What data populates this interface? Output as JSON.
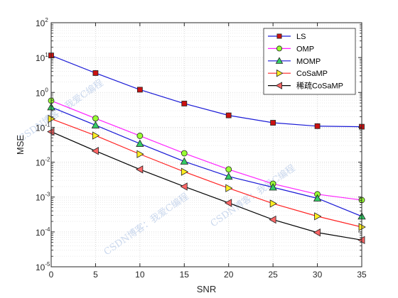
{
  "chart_data": {
    "type": "line",
    "xlabel": "SNR",
    "ylabel": "MSE",
    "yscale": "log",
    "xlim": [
      0,
      35
    ],
    "ylim_exponents": [
      -5,
      2
    ],
    "grid": true,
    "legend_location": "top-right",
    "x_ticks": [
      "0",
      "5",
      "10",
      "15",
      "20",
      "25",
      "30",
      "35"
    ],
    "y_ticks": [
      {
        "base": "10",
        "exp": "-5"
      },
      {
        "base": "10",
        "exp": "-4"
      },
      {
        "base": "10",
        "exp": "-3"
      },
      {
        "base": "10",
        "exp": "-2"
      },
      {
        "base": "10",
        "exp": "-1"
      },
      {
        "base": "10",
        "exp": "0"
      },
      {
        "base": "10",
        "exp": "1"
      },
      {
        "base": "10",
        "exp": "2"
      }
    ],
    "x": [
      0,
      5,
      10,
      15,
      20,
      25,
      30,
      35
    ],
    "series": [
      {
        "name": "LS",
        "color": "#1a1ad6",
        "marker": "square",
        "marker_fill": "#cc1111",
        "values": [
          11.5,
          3.6,
          1.2,
          0.48,
          0.22,
          0.135,
          0.108,
          0.104
        ]
      },
      {
        "name": "OMP",
        "color": "#ff22ff",
        "marker": "circle",
        "marker_fill": "#99ff33",
        "values": [
          0.58,
          0.18,
          0.057,
          0.018,
          0.0062,
          0.0024,
          0.0012,
          0.00082
        ]
      },
      {
        "name": "MOMP",
        "color": "#1a1ad6",
        "marker": "triangle-up",
        "marker_fill": "#33cc66",
        "values": [
          0.38,
          0.115,
          0.034,
          0.0105,
          0.0039,
          0.0019,
          0.00092,
          0.00028
        ]
      },
      {
        "name": "CoSaMP",
        "color": "#ff2222",
        "marker": "triangle-right",
        "marker_fill": "#ffee22",
        "values": [
          0.175,
          0.058,
          0.017,
          0.0053,
          0.0018,
          0.00065,
          0.00028,
          0.000138
        ]
      },
      {
        "name": "稀疏CoSaMP",
        "color": "#000000",
        "marker": "triangle-left",
        "marker_fill": "#ff6666",
        "values": [
          0.075,
          0.021,
          0.0062,
          0.002,
          0.00068,
          0.000225,
          9.6e-05,
          5.85e-05
        ]
      }
    ],
    "watermarks": [
      "CSDN博客：我爱C编程",
      "CSDN博客：我爱C编程",
      "CSDN博客：我爱C编程"
    ]
  }
}
